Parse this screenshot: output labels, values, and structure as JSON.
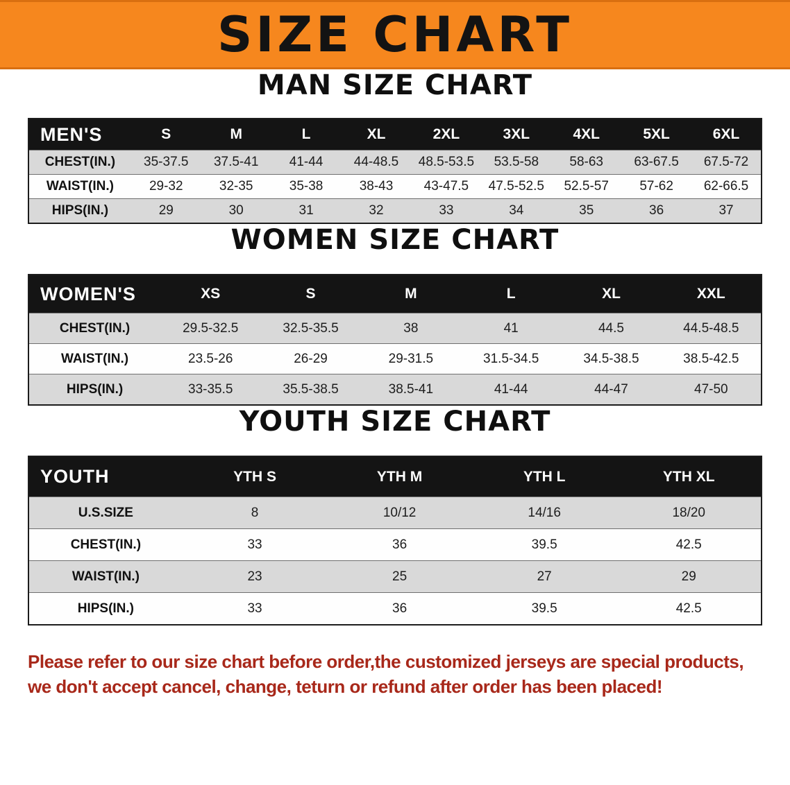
{
  "banner": {
    "title": "SIZE CHART"
  },
  "colors": {
    "banner_bg": "#f6871e",
    "header_row_bg": "#141414",
    "shaded_row_bg": "#d9d9d9",
    "footnote_red": "#a8281a"
  },
  "chart_data": [
    {
      "type": "table",
      "title": "MAN SIZE CHART",
      "columns": [
        "MEN'S",
        "S",
        "M",
        "L",
        "XL",
        "2XL",
        "3XL",
        "4XL",
        "5XL",
        "6XL"
      ],
      "rows": [
        [
          "CHEST(IN.)",
          "35-37.5",
          "37.5-41",
          "41-44",
          "44-48.5",
          "48.5-53.5",
          "53.5-58",
          "58-63",
          "63-67.5",
          "67.5-72"
        ],
        [
          "WAIST(IN.)",
          "29-32",
          "32-35",
          "35-38",
          "38-43",
          "43-47.5",
          "47.5-52.5",
          "52.5-57",
          "57-62",
          "62-66.5"
        ],
        [
          "HIPS(IN.)",
          "29",
          "30",
          "31",
          "32",
          "33",
          "34",
          "35",
          "36",
          "37"
        ]
      ]
    },
    {
      "type": "table",
      "title": "WOMEN SIZE CHART",
      "columns": [
        "WOMEN'S",
        "XS",
        "S",
        "M",
        "L",
        "XL",
        "XXL"
      ],
      "rows": [
        [
          "CHEST(IN.)",
          "29.5-32.5",
          "32.5-35.5",
          "38",
          "41",
          "44.5",
          "44.5-48.5"
        ],
        [
          "WAIST(IN.)",
          "23.5-26",
          "26-29",
          "29-31.5",
          "31.5-34.5",
          "34.5-38.5",
          "38.5-42.5"
        ],
        [
          "HIPS(IN.)",
          "33-35.5",
          "35.5-38.5",
          "38.5-41",
          "41-44",
          "44-47",
          "47-50"
        ]
      ]
    },
    {
      "type": "table",
      "title": "YOUTH SIZE CHART",
      "columns": [
        "YOUTH",
        "YTH S",
        "YTH M",
        "YTH L",
        "YTH XL"
      ],
      "rows": [
        [
          "U.S.SIZE",
          "8",
          "10/12",
          "14/16",
          "18/20"
        ],
        [
          "CHEST(IN.)",
          "33",
          "36",
          "39.5",
          "42.5"
        ],
        [
          "WAIST(IN.)",
          "23",
          "25",
          "27",
          "29"
        ],
        [
          "HIPS(IN.)",
          "33",
          "36",
          "39.5",
          "42.5"
        ]
      ]
    }
  ],
  "footnote": {
    "line1": "Please refer to our size chart before order,the customized jerseys are special products,",
    "line2": "we don't accept cancel, change, teturn or refund after order has been placed!"
  }
}
